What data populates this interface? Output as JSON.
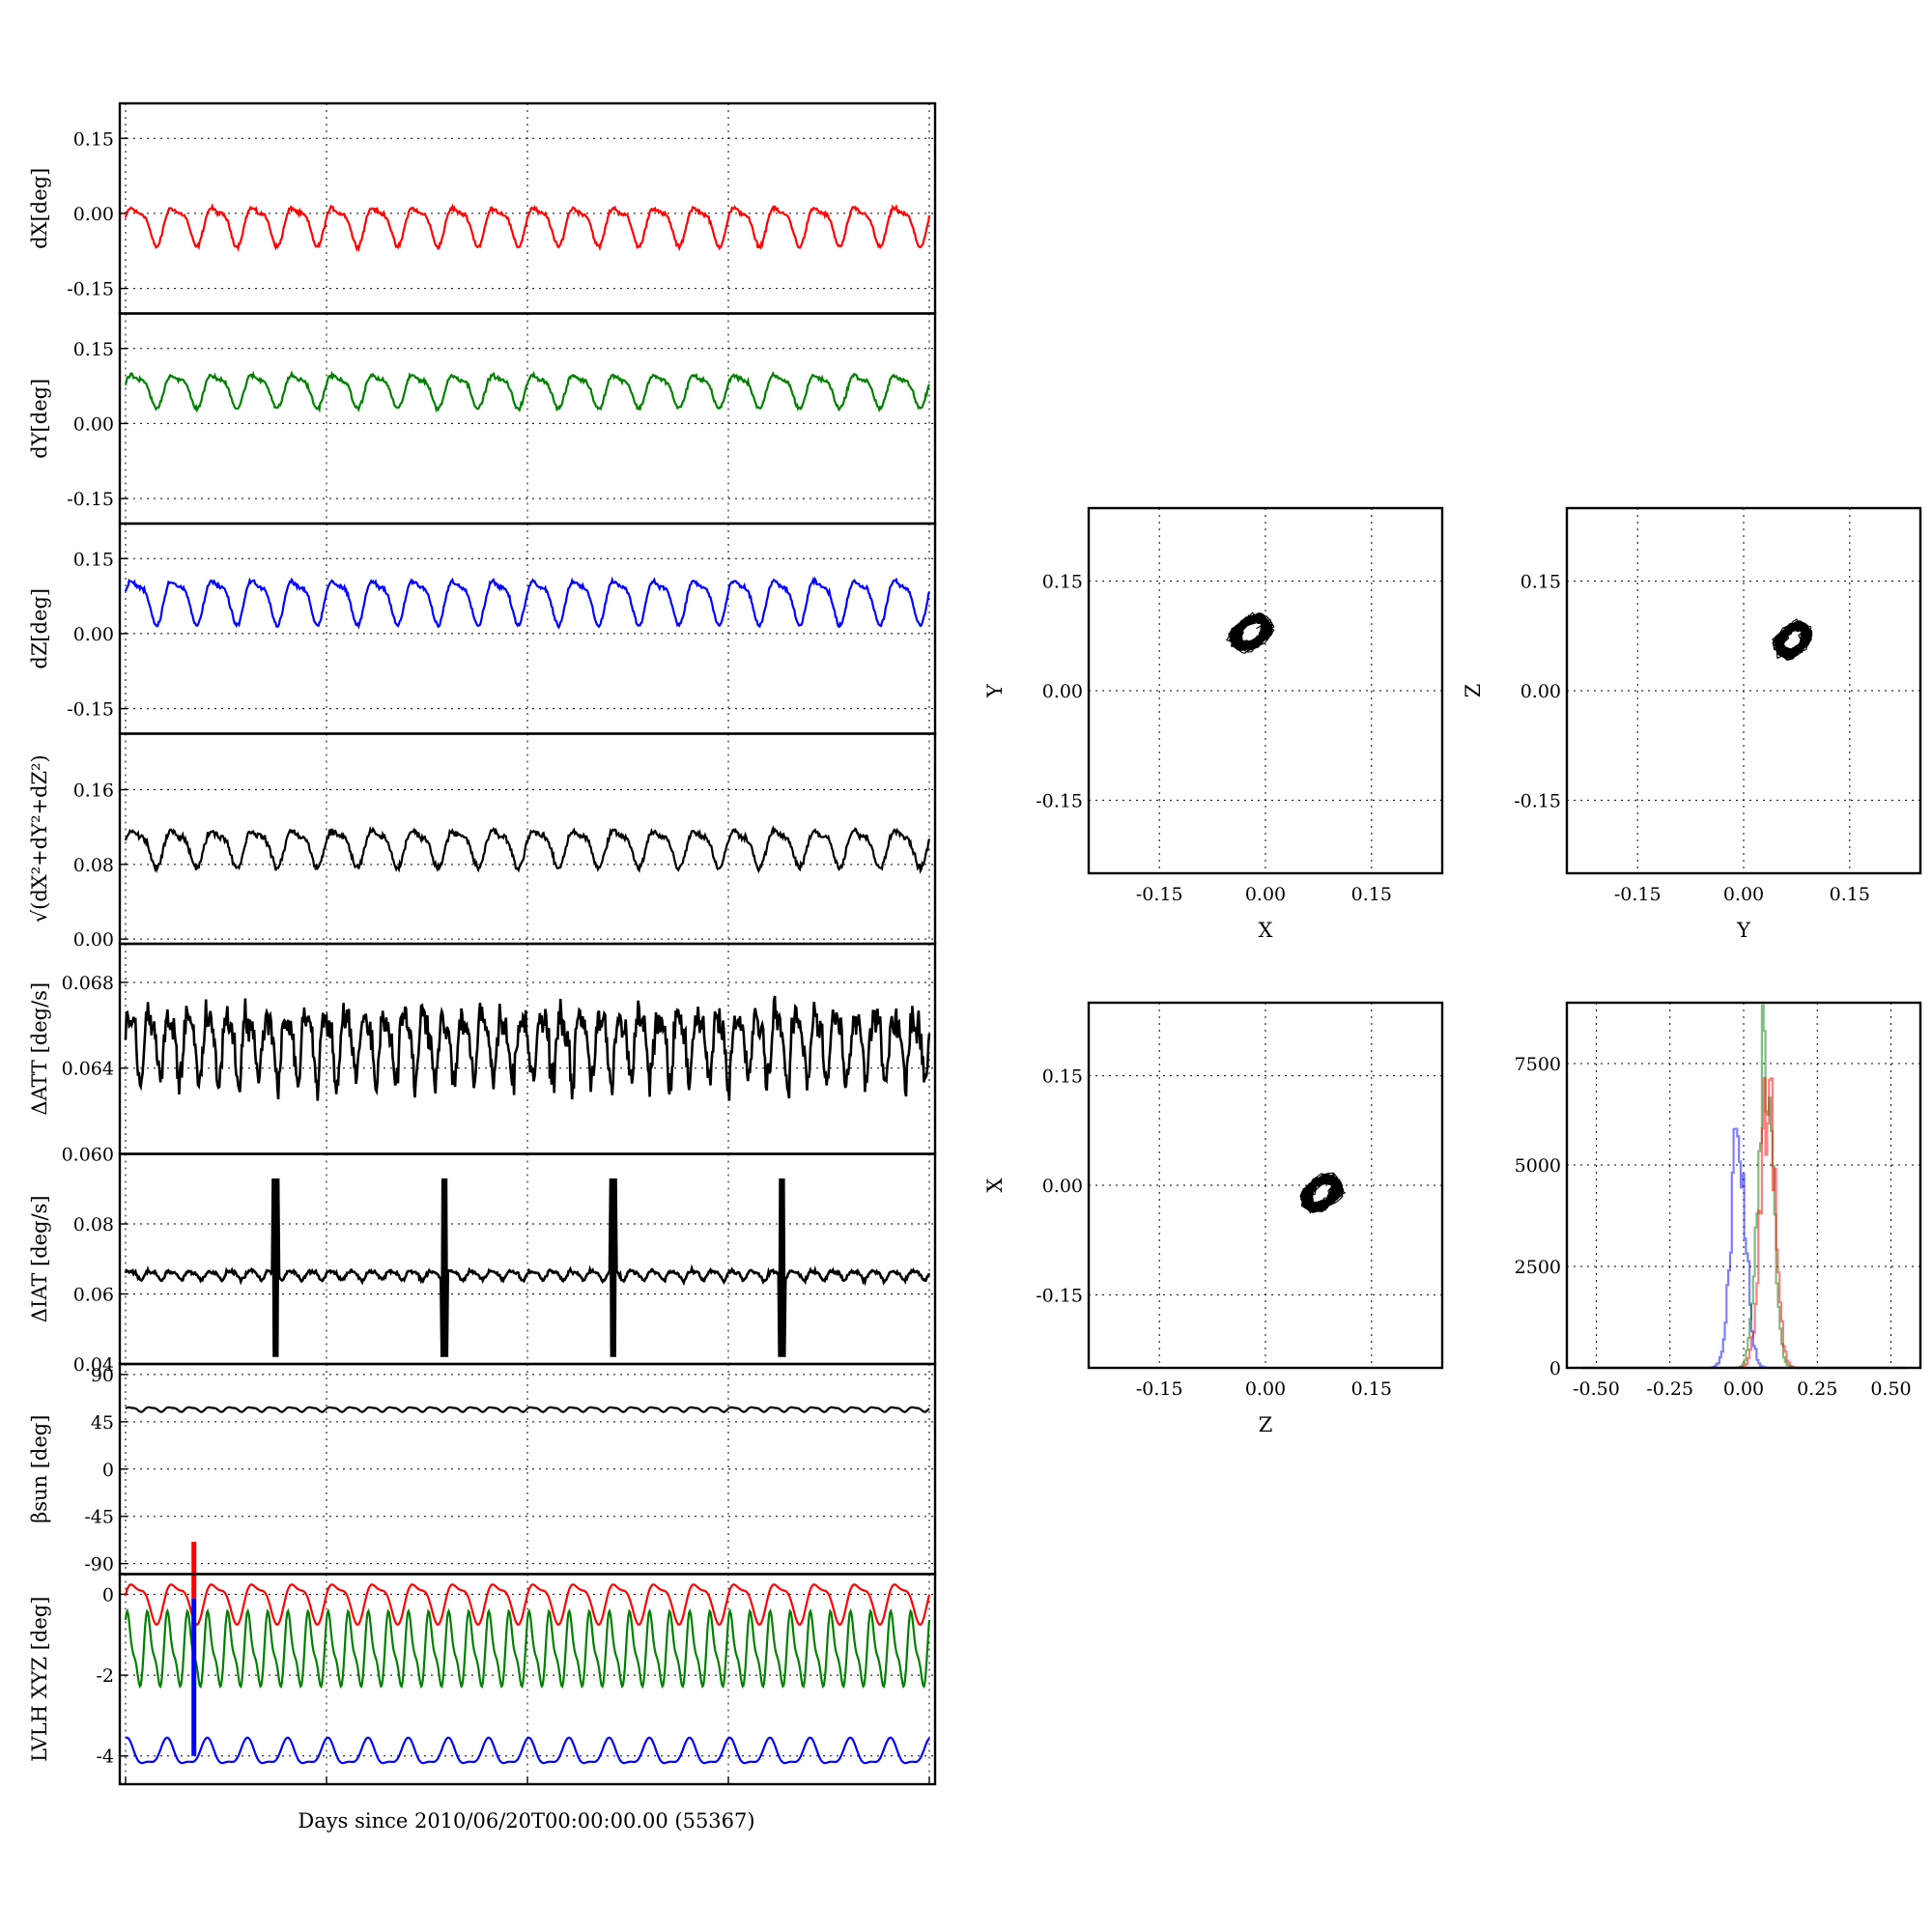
{
  "xlabel": "Days since 2010/06/20T00:00:00.00 (55367)",
  "colors": {
    "x": "#ff0000",
    "y": "#008000",
    "z": "#0000ff",
    "k": "#000000"
  },
  "chart_data": [
    {
      "type": "line",
      "id": "dx",
      "ylabel": "dX[deg]",
      "yticks": [
        "0.15",
        "0.00",
        "-0.15"
      ],
      "ylim": [
        -0.2,
        0.22
      ],
      "series": [
        {
          "color": "#ff0000",
          "mean": -0.02,
          "amp": 0.035,
          "cycles": 20,
          "noise": 0.006
        }
      ]
    },
    {
      "type": "line",
      "id": "dy",
      "ylabel": "dY[deg]",
      "yticks": [
        "0.15",
        "0.00",
        "-0.15"
      ],
      "ylim": [
        -0.2,
        0.22
      ],
      "series": [
        {
          "color": "#008000",
          "mean": 0.07,
          "amp": 0.03,
          "cycles": 20,
          "noise": 0.006
        }
      ]
    },
    {
      "type": "line",
      "id": "dz",
      "ylabel": "dZ[deg]",
      "yticks": [
        "0.15",
        "0.00",
        "-0.15"
      ],
      "ylim": [
        -0.2,
        0.22
      ],
      "series": [
        {
          "color": "#0000ff",
          "mean": 0.07,
          "amp": 0.04,
          "cycles": 20,
          "noise": 0.006
        }
      ]
    },
    {
      "type": "line",
      "id": "dr",
      "ylabel": "√(dX²+dY²+dZ²)",
      "yticks": [
        "0.16",
        "0.08",
        "0.00"
      ],
      "ylim": [
        -0.005,
        0.22
      ],
      "series": [
        {
          "color": "#000000",
          "mean": 0.1,
          "amp": 0.018,
          "cycles": 20,
          "noise": 0.005
        }
      ]
    },
    {
      "type": "line",
      "id": "datt",
      "ylabel": "ΔATT [deg/s]",
      "yticks": [
        "0.068",
        "0.064",
        "0.060"
      ],
      "ylim": [
        0.06,
        0.0698
      ],
      "series": [
        {
          "color": "#000000",
          "mean": 0.0652,
          "amp": 0.0014,
          "cycles": 41,
          "noise": 0.0012
        }
      ]
    },
    {
      "type": "line",
      "id": "diat",
      "ylabel": "ΔIAT [deg/s]",
      "yticks": [
        "0.08",
        "0.06",
        "0.04"
      ],
      "ylim": [
        0.04,
        0.1
      ],
      "series": [
        {
          "color": "#000000",
          "mean": 0.0655,
          "amp": 0.0012,
          "cycles": 40,
          "noise": 0.0008,
          "spikes": [
            0.187,
            0.397,
            0.607,
            0.817
          ],
          "spike_range": [
            0.042,
            0.093
          ]
        }
      ]
    },
    {
      "type": "line",
      "id": "beta",
      "ylabel": "βsun [deg]",
      "yticks": [
        "90",
        "45",
        "0",
        "-45",
        "-90"
      ],
      "ylim": [
        -100,
        100
      ],
      "series": [
        {
          "color": "#000000",
          "mean": 57,
          "amp": 2,
          "cycles": 40,
          "noise": 0
        }
      ]
    },
    {
      "type": "line",
      "id": "lvlh",
      "ylabel": "LVLH XYZ [deg]",
      "yticks": [
        "0",
        "-2",
        "-4"
      ],
      "ylim": [
        -4.7,
        0.5
      ],
      "series": [
        {
          "color": "#ff0000",
          "mean": -0.15,
          "amp": 0.45,
          "cycles": 20,
          "noise": 0
        },
        {
          "color": "#008000",
          "mean": -1.4,
          "amp": 0.8,
          "cycles": 40,
          "noise": 0
        },
        {
          "color": "#0000ff",
          "mean": -3.95,
          "amp": 0.3,
          "cycles": 20,
          "noise": 0
        }
      ],
      "marker": {
        "x": 0.085,
        "red": [
          -0.1,
          1.3
        ],
        "blue": [
          -4.0,
          -0.1
        ]
      }
    }
  ],
  "scatter": [
    {
      "id": "xy",
      "xlabel": "X",
      "ylabel": "Y",
      "ticks": [
        "-0.15",
        "0.00",
        "0.15"
      ],
      "center": [
        -0.02,
        0.08
      ],
      "spread": [
        0.04,
        0.035
      ]
    },
    {
      "id": "yz",
      "xlabel": "Y",
      "ylabel": "Z",
      "ticks": [
        "-0.15",
        "0.00",
        "0.15"
      ],
      "center": [
        0.07,
        0.07
      ],
      "spread": [
        0.035,
        0.035
      ]
    },
    {
      "id": "zx",
      "xlabel": "Z",
      "ylabel": "X",
      "ticks": [
        "-0.15",
        "0.00",
        "0.15"
      ],
      "center": [
        0.08,
        -0.01
      ],
      "spread": [
        0.04,
        0.035
      ]
    }
  ],
  "histogram": {
    "type": "bar",
    "xticks": [
      "-0.50",
      "-0.25",
      "0.00",
      "0.25",
      "0.50"
    ],
    "yticks": [
      "7500",
      "5000",
      "2500",
      "0"
    ],
    "series": [
      {
        "color": "#0000ff",
        "center": -0.02,
        "width": 0.025,
        "peak": 5800
      },
      {
        "color": "#008000",
        "center": 0.07,
        "width": 0.025,
        "peak": 8000
      },
      {
        "color": "#ff0000",
        "center": 0.08,
        "width": 0.025,
        "peak": 6700
      }
    ]
  }
}
